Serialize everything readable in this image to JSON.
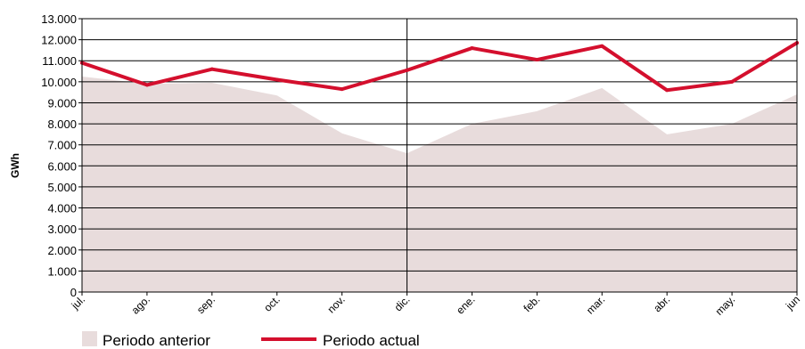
{
  "chart_data": {
    "type": "line",
    "ylabel": "GWh",
    "xlabel": "",
    "ylim": [
      0,
      13000
    ],
    "yticks": [
      0,
      1000,
      2000,
      3000,
      4000,
      5000,
      6000,
      7000,
      8000,
      9000,
      10000,
      11000,
      12000,
      13000
    ],
    "ytick_labels": [
      "0",
      "1.000",
      "2.000",
      "3.000",
      "4.000",
      "5.000",
      "6.000",
      "7.000",
      "8.000",
      "9.000",
      "10.000",
      "11.000",
      "12.000",
      "13.000"
    ],
    "categories": [
      "jul.",
      "ago.",
      "sep.",
      "oct.",
      "nov.",
      "dic.",
      "ene.",
      "feb.",
      "mar.",
      "abr.",
      "may.",
      "jun"
    ],
    "grid": "horizontal",
    "legend_position": "bottom",
    "series": [
      {
        "name": "Periodo anterior",
        "kind": "area",
        "color": "#e8dcdc",
        "values": [
          10250,
          9900,
          9950,
          9350,
          7550,
          6600,
          8000,
          8600,
          9700,
          7500,
          8000,
          9400
        ]
      },
      {
        "name": "Periodo actual",
        "kind": "line",
        "color": "#d40f2d",
        "values": [
          10900,
          9850,
          10600,
          10100,
          9650,
          10550,
          11600,
          11050,
          11700,
          9600,
          10000,
          11850
        ]
      }
    ]
  }
}
